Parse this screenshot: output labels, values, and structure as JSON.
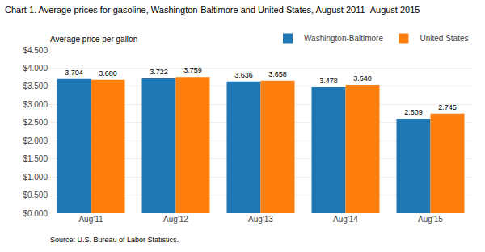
{
  "chart_data": {
    "type": "bar",
    "title": "Chart 1. Average prices for gasoline, Washington-Baltimore and United States, August 2011–August 2015",
    "ylabel": "Average price per gallon",
    "annotations": [
      "Source: U.S. Bureau of Labor Statistics."
    ],
    "categories": [
      "Aug'11",
      "Aug'12",
      "Aug'13",
      "Aug'14",
      "Aug'15"
    ],
    "series": [
      {
        "name": "Washington-Baltimore",
        "values": [
          3.704,
          3.722,
          3.636,
          3.478,
          2.609
        ],
        "value_labels": [
          "3.704",
          "3.722",
          "3.636",
          "3.478",
          "2.609"
        ]
      },
      {
        "name": "United States",
        "values": [
          3.68,
          3.759,
          3.658,
          3.54,
          2.745
        ],
        "value_labels": [
          "3.680",
          "3.759",
          "3.658",
          "3.540",
          "2.745"
        ]
      }
    ],
    "ylim": [
      0,
      4.5
    ],
    "yticks": [
      {
        "value": 0.0,
        "label": "$0.000"
      },
      {
        "value": 0.5,
        "label": "$0.500"
      },
      {
        "value": 1.0,
        "label": "$1.000"
      },
      {
        "value": 1.5,
        "label": "$1.500"
      },
      {
        "value": 2.0,
        "label": "$2.000"
      },
      {
        "value": 2.5,
        "label": "$2.500"
      },
      {
        "value": 3.0,
        "label": "$3.000"
      },
      {
        "value": 3.5,
        "label": "$3.500"
      },
      {
        "value": 4.0,
        "label": "$4.000"
      },
      {
        "value": 4.5,
        "label": "$4.500"
      }
    ],
    "grid": true,
    "legend": "upper right",
    "data_labels": true
  }
}
